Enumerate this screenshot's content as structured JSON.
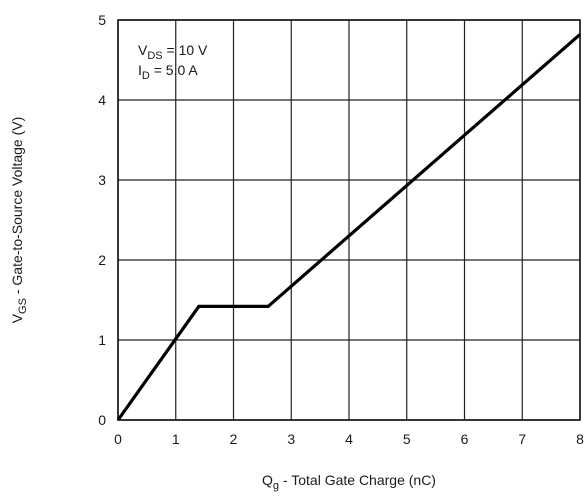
{
  "chart_data": {
    "type": "line",
    "xlabel": {
      "main": "Q",
      "sub": "g",
      "rest": " - Total Gate Charge (nC)"
    },
    "ylabel": {
      "main": "V",
      "sub": "GS",
      "rest": " - Gate-to-Source Voltage (V)"
    },
    "xlim": [
      0,
      8
    ],
    "ylim": [
      0,
      5
    ],
    "x_ticks": [
      0,
      1,
      2,
      3,
      4,
      5,
      6,
      7,
      8
    ],
    "y_ticks": [
      0,
      1,
      2,
      3,
      4,
      5
    ],
    "grid": true,
    "annotations": [
      {
        "main": "V",
        "sub": "DS",
        "rest": " = 10 V"
      },
      {
        "main": "I",
        "sub": "D",
        "rest": " = 5.0 A"
      }
    ],
    "series": [
      {
        "x": [
          0,
          1.4,
          2.6,
          8
        ],
        "y": [
          0,
          1.42,
          1.42,
          4.82
        ]
      }
    ]
  }
}
